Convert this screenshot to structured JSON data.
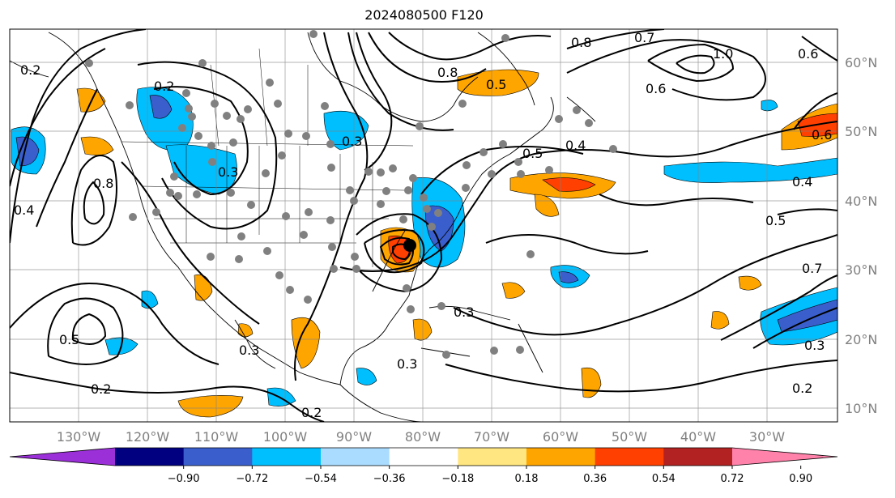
{
  "title": "2024080500 F120",
  "map": {
    "lon_labels": [
      "130°W",
      "120°W",
      "110°W",
      "100°W",
      "90°W",
      "80°W",
      "70°W",
      "60°W",
      "50°W",
      "40°W",
      "30°W"
    ],
    "lat_labels": [
      "60°N",
      "50°N",
      "40°N",
      "30°N",
      "20°N",
      "10°N"
    ],
    "contour_labels": [
      "0.2",
      "0.2",
      "0.2",
      "0.2",
      "0.2",
      "0.3",
      "0.3",
      "0.3",
      "0.3",
      "0.3",
      "0.3",
      "0.4",
      "0.4",
      "0.4",
      "0.5",
      "0.5",
      "0.5",
      "0.5",
      "0.6",
      "0.6",
      "0.6",
      "0.7",
      "0.7",
      "0.8",
      "0.8",
      "0.8",
      "1.0"
    ],
    "colors": {
      "land_border": "#000000",
      "grid": "#808080",
      "contour": "#000000",
      "station": "#808080",
      "storm": "#000000"
    }
  },
  "colorbar": {
    "ticks": [
      "−0.90",
      "−0.72",
      "−0.54",
      "−0.36",
      "−0.18",
      "0.18",
      "0.36",
      "0.54",
      "0.72",
      "0.90"
    ],
    "colors": [
      "#9b30d9",
      "#000080",
      "#3a5fcd",
      "#00bfff",
      "#aadcff",
      "#ffffff",
      "#ffe680",
      "#ffa500",
      "#ff4000",
      "#b22222",
      "#ff82ab"
    ]
  }
}
